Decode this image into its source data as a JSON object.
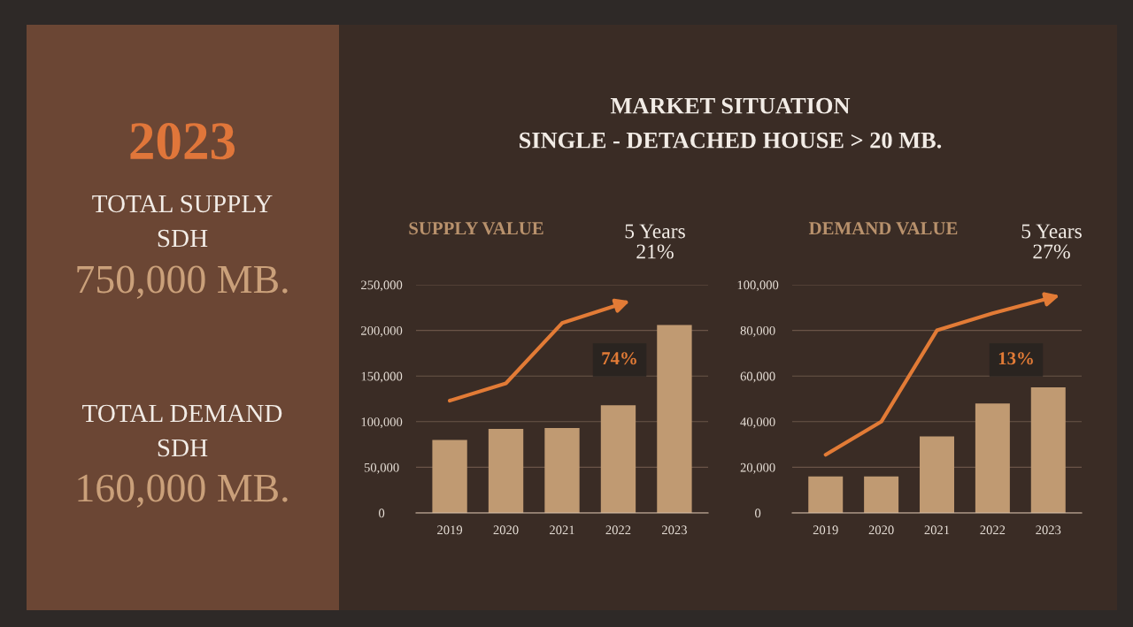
{
  "chart_data": [
    {
      "type": "other",
      "title": "MARKET SITUATION",
      "subtitle": "SINGLE - DETACHED HOUSE > 20 MB."
    },
    {
      "type": "other",
      "title": "2023",
      "annotations": [
        "TOTAL SUPPLY",
        "SDH",
        "750,000 MB.",
        "TOTAL DEMAND",
        "SDH",
        "160,000 MB."
      ]
    },
    {
      "type": "bar",
      "title": "SUPPLY VALUE",
      "categories": [
        "2019",
        "2020",
        "2021",
        "2022",
        "2023"
      ],
      "ylim": [
        0,
        250000
      ],
      "yticks": [
        {
          "value": 0,
          "label": "0"
        },
        {
          "value": 50000,
          "label": "50,000"
        },
        {
          "value": 100000,
          "label": "100,000"
        },
        {
          "value": 150000,
          "label": "150,000"
        },
        {
          "value": 200000,
          "label": "200,000"
        },
        {
          "value": 250000,
          "label": "250,000"
        }
      ],
      "grid": "y",
      "annotations": [
        "5 Years\n21%",
        "74%"
      ],
      "series": [
        {
          "type": "bar",
          "color": "#c09a72",
          "values": [
            80000,
            92000,
            93000,
            118000,
            206000
          ]
        },
        {
          "type": "line",
          "color": "#e27b36",
          "values": [
            123000,
            142000,
            208000,
            228000,
            null
          ]
        }
      ]
    },
    {
      "type": "bar",
      "title": "DEMAND VALUE",
      "categories": [
        "2019",
        "2020",
        "2021",
        "2022",
        "2023"
      ],
      "ylim": [
        0,
        100000
      ],
      "yticks": [
        {
          "value": 0,
          "label": "0"
        },
        {
          "value": 20000,
          "label": "20,000"
        },
        {
          "value": 40000,
          "label": "40,000"
        },
        {
          "value": 60000,
          "label": "60,000"
        },
        {
          "value": 80000,
          "label": "80,000"
        },
        {
          "value": 100000,
          "label": "100,000"
        }
      ],
      "grid": "y",
      "annotations": [
        "5 Years\n27%",
        "13%"
      ],
      "series": [
        {
          "type": "bar",
          "color": "#c09a72",
          "values": [
            16000,
            16000,
            33500,
            48000,
            55000
          ]
        },
        {
          "type": "line",
          "color": "#e27b36",
          "values": [
            25500,
            40000,
            80000,
            87500,
            94000
          ]
        }
      ]
    }
  ]
}
